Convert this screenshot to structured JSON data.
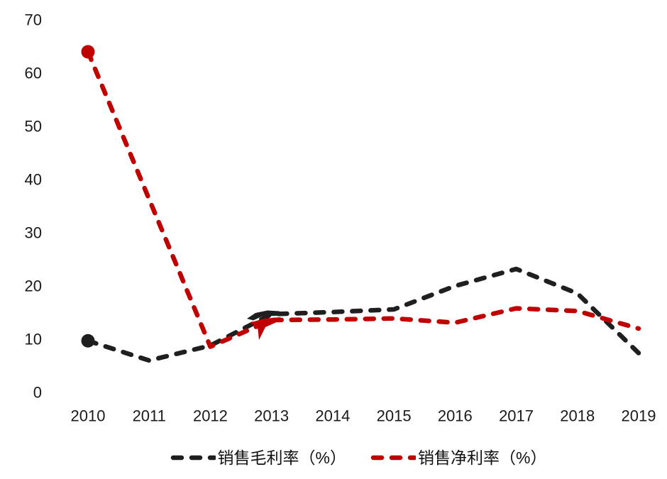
{
  "chart_data": {
    "type": "line",
    "title": "",
    "xlabel": "",
    "ylabel": "",
    "categories": [
      "2010",
      "2011",
      "2012",
      "2013",
      "2014",
      "2015",
      "2016",
      "2017",
      "2018",
      "2019"
    ],
    "yticks": [
      0,
      10,
      20,
      30,
      40,
      50,
      60,
      70
    ],
    "ylim": [
      0,
      70
    ],
    "grid": false,
    "axis_lines": false,
    "legend_position": "bottom",
    "line_style": "dashed",
    "series": [
      {
        "name": "销售毛利率（%）",
        "color": "#1f1f1f",
        "style": "dashed",
        "marker_on_first_point": true,
        "values": [
          9.7,
          6.0,
          8.8,
          14.7,
          15.1,
          15.6,
          20.0,
          23.2,
          18.6,
          7.4
        ]
      },
      {
        "name": "销售净利率（%）",
        "color": "#c00000",
        "style": "dashed",
        "marker_on_first_point": true,
        "values": [
          64.0,
          null,
          8.6,
          13.6,
          13.7,
          13.9,
          13.1,
          15.8,
          15.3,
          12.0
        ]
      }
    ],
    "annotations": [
      {
        "id": "black-arrow",
        "shape": "freeform-arrow",
        "color": "#1f1f1f"
      },
      {
        "id": "red-arrow",
        "shape": "freeform-arrow",
        "color": "#c00000"
      }
    ]
  },
  "legend": {
    "items": [
      {
        "label": "销售毛利率（%）"
      },
      {
        "label": "销售净利率（%）"
      }
    ]
  }
}
